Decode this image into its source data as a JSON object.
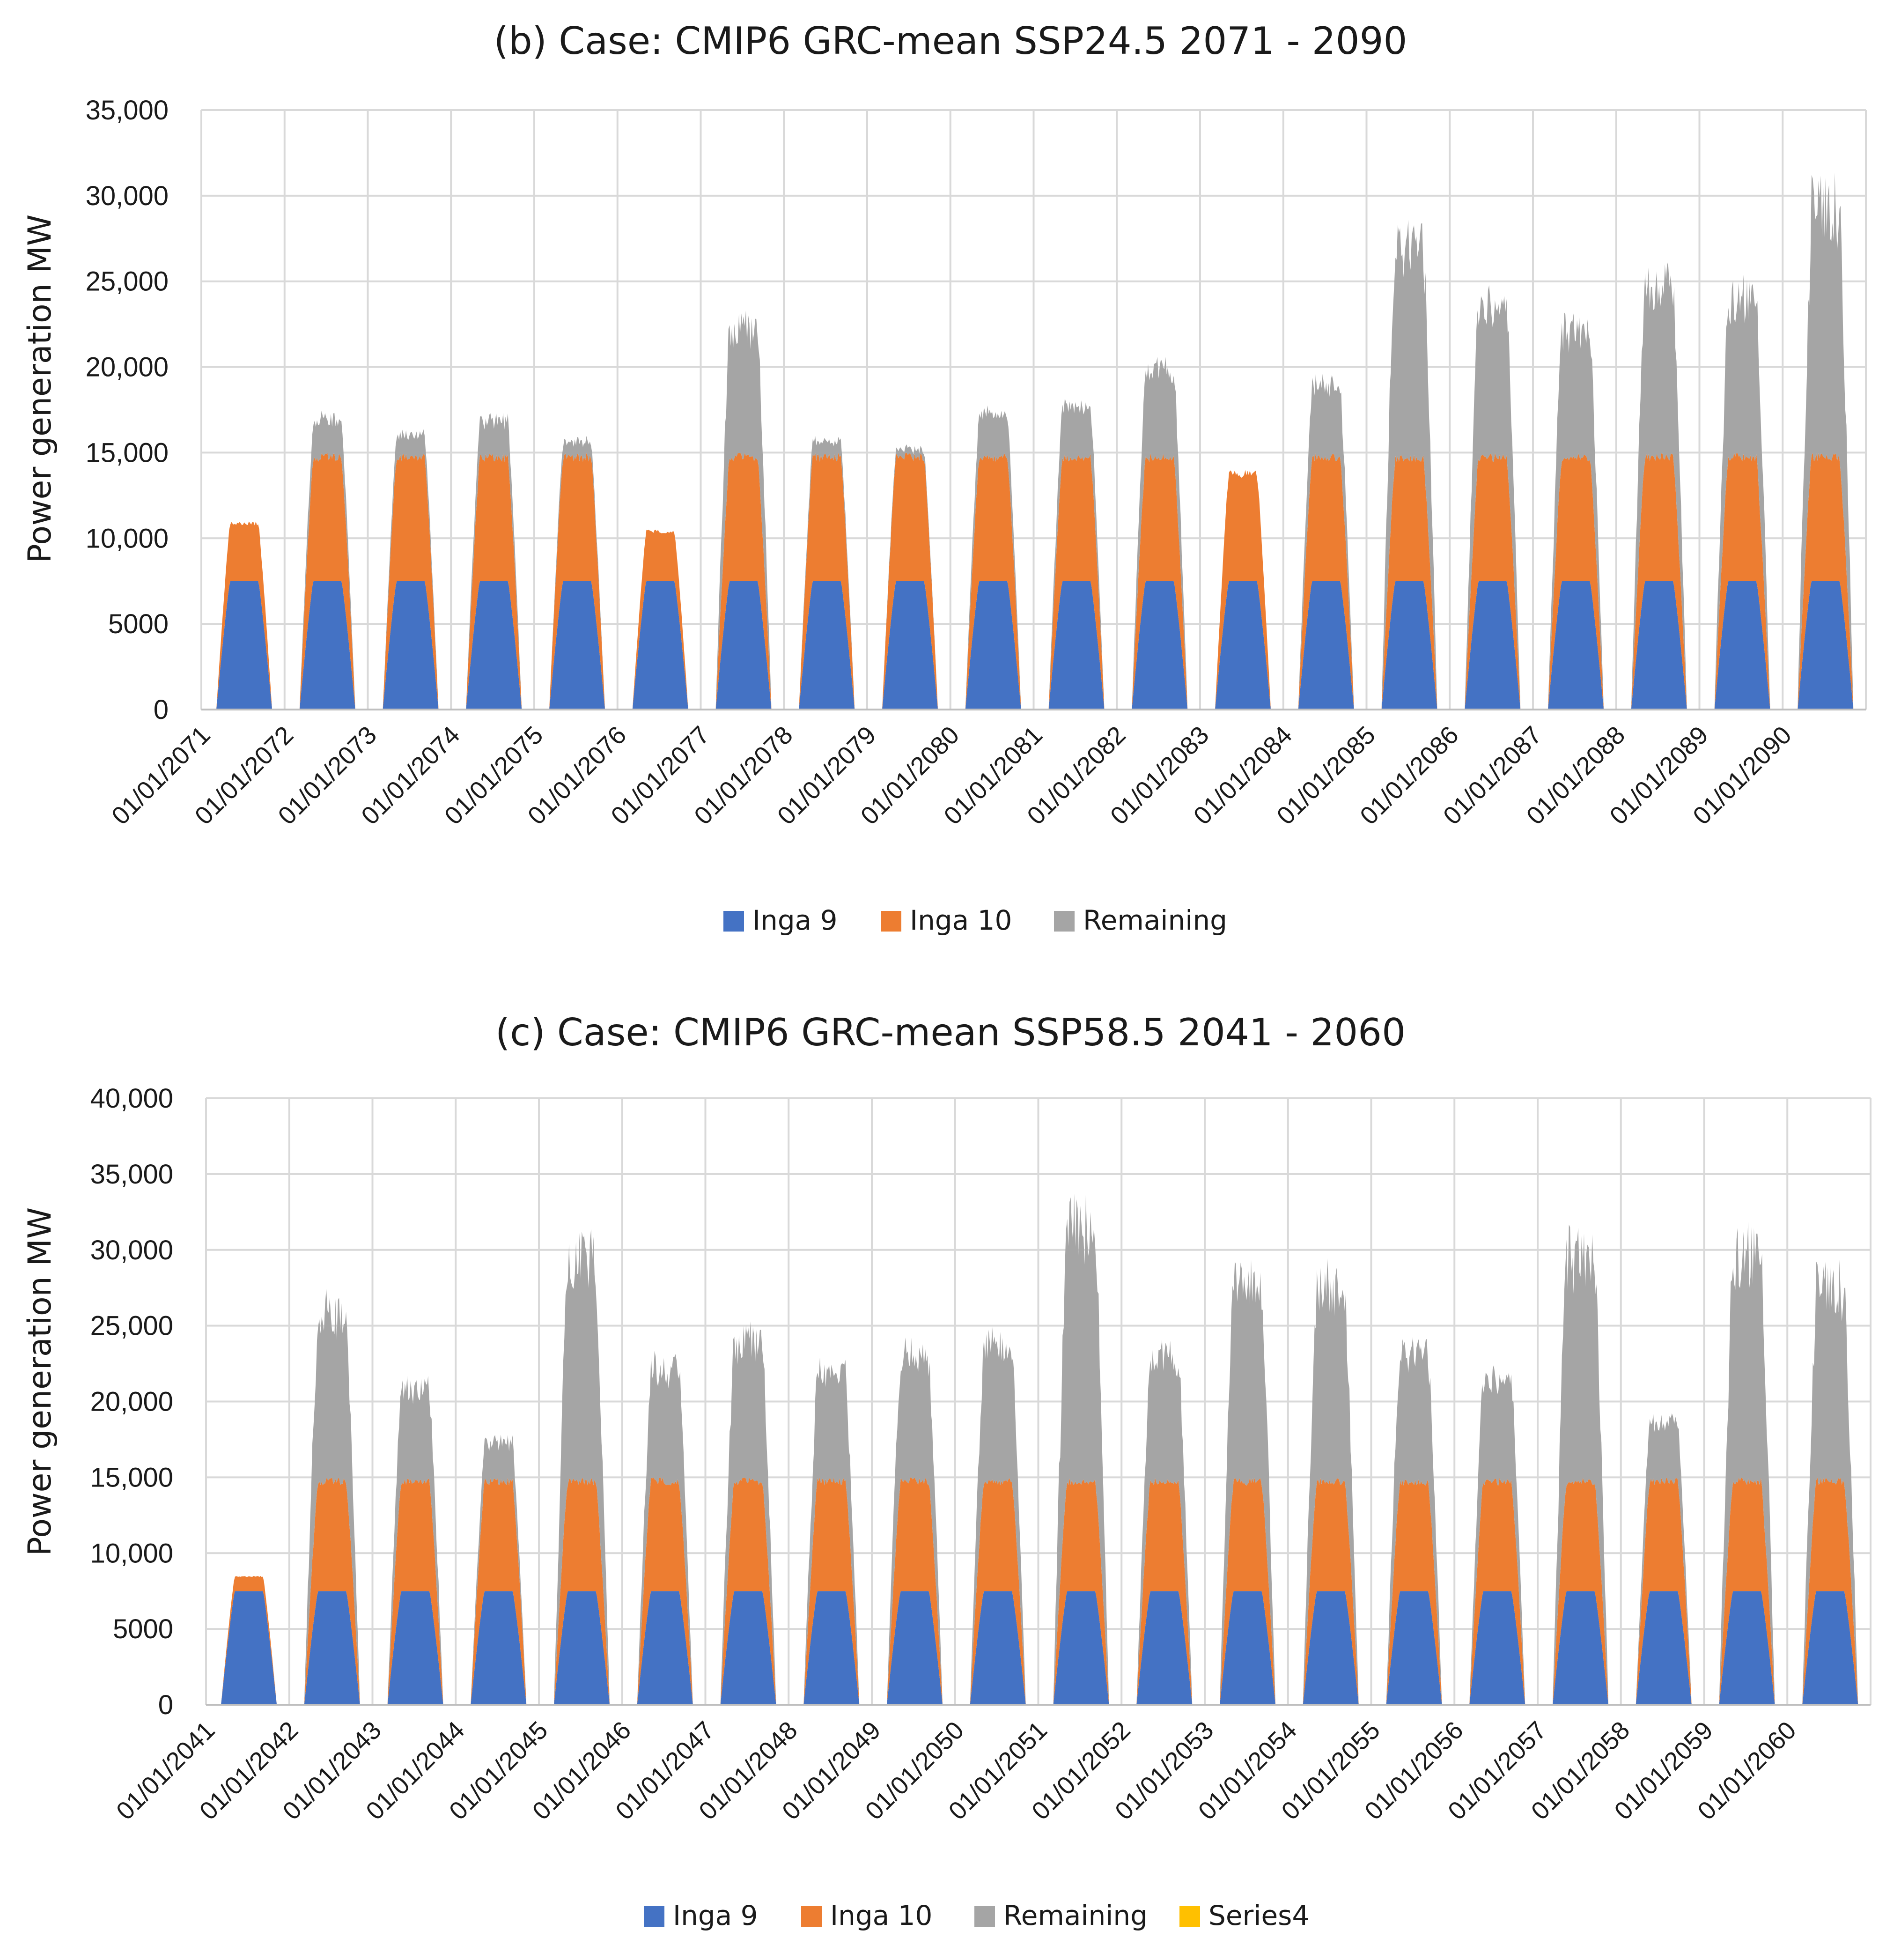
{
  "chart_data": [
    {
      "type": "area",
      "stacked": true,
      "title": "(b)  Case: CMIP6 GRC-mean  SSP24.5  2071 - 2090",
      "ylabel": "Power generation MW",
      "xlabel": "",
      "ylim": [
        0,
        35000
      ],
      "yticks": [
        0,
        5000,
        10000,
        15000,
        20000,
        25000,
        30000,
        35000
      ],
      "ytick_labels": [
        "0",
        "5000",
        "10,000",
        "15,000",
        "20,000",
        "25,000",
        "30,000",
        "35,000"
      ],
      "categories": [
        "01/01/2071",
        "01/01/2072",
        "01/01/2073",
        "01/01/2074",
        "01/01/2075",
        "01/01/2076",
        "01/01/2077",
        "01/01/2078",
        "01/01/2079",
        "01/01/2080",
        "01/01/2081",
        "01/01/2082",
        "01/01/2083",
        "01/01/2084",
        "01/01/2085",
        "01/01/2086",
        "01/01/2087",
        "01/01/2088",
        "01/01/2089",
        "01/01/2090"
      ],
      "grid": true,
      "legend_position": "bottom",
      "series": [
        {
          "name": "Inga 9",
          "color": "#4472c4",
          "values": [
            7500,
            7500,
            7500,
            7500,
            7500,
            7500,
            7500,
            7500,
            7500,
            7500,
            7500,
            7500,
            7500,
            7500,
            7500,
            7500,
            7500,
            7500,
            7500,
            7500
          ]
        },
        {
          "name": "Inga 10",
          "color": "#ed7d31",
          "values": [
            3500,
            7500,
            7500,
            7500,
            7500,
            3000,
            7500,
            7500,
            7500,
            7500,
            7500,
            7500,
            6500,
            7500,
            7500,
            7500,
            7500,
            7500,
            7500,
            7500
          ]
        },
        {
          "name": "Remaining",
          "color": "#a5a5a5",
          "values": [
            0,
            2500,
            1500,
            2500,
            1000,
            0,
            8500,
            1000,
            500,
            3000,
            3500,
            6000,
            0,
            5000,
            14500,
            10500,
            8500,
            11500,
            10500,
            16500
          ]
        }
      ]
    },
    {
      "type": "area",
      "stacked": true,
      "title": "(c)  Case: CMIP6 GRC-mean  SSP58.5  2041 - 2060",
      "ylabel": "Power generation MW",
      "xlabel": "",
      "ylim": [
        0,
        40000
      ],
      "yticks": [
        0,
        5000,
        10000,
        15000,
        20000,
        25000,
        30000,
        35000,
        40000
      ],
      "ytick_labels": [
        "0",
        "5000",
        "10,000",
        "15,000",
        "20,000",
        "25,000",
        "30,000",
        "35,000",
        "40,000"
      ],
      "categories": [
        "01/01/2041",
        "01/01/2042",
        "01/01/2043",
        "01/01/2044",
        "01/01/2045",
        "01/01/2046",
        "01/01/2047",
        "01/01/2048",
        "01/01/2049",
        "01/01/2050",
        "01/01/2051",
        "01/01/2052",
        "01/01/2053",
        "01/01/2054",
        "01/01/2055",
        "01/01/2056",
        "01/01/2057",
        "01/01/2058",
        "01/01/2059",
        "01/01/2060"
      ],
      "grid": true,
      "legend_position": "bottom",
      "series": [
        {
          "name": "Inga 9",
          "color": "#4472c4",
          "values": [
            7500,
            7500,
            7500,
            7500,
            7500,
            7500,
            7500,
            7500,
            7500,
            7500,
            7500,
            7500,
            7500,
            7500,
            7500,
            7500,
            7500,
            7500,
            7500,
            7500
          ]
        },
        {
          "name": "Inga 10",
          "color": "#ed7d31",
          "values": [
            1000,
            7500,
            7500,
            7500,
            7500,
            7500,
            7500,
            7500,
            7500,
            7500,
            7500,
            7500,
            7500,
            7500,
            7500,
            7500,
            7500,
            7500,
            7500,
            7500
          ]
        },
        {
          "name": "Remaining",
          "color": "#a5a5a5",
          "values": [
            0,
            12500,
            7000,
            3000,
            16500,
            8500,
            10500,
            8000,
            9500,
            10500,
            19500,
            9500,
            15000,
            15000,
            10000,
            8000,
            17000,
            4500,
            17000,
            14500
          ]
        },
        {
          "name": "Series4",
          "color": "#ffc000",
          "values": [
            0,
            0,
            0,
            0,
            0,
            0,
            0,
            0,
            0,
            0,
            0,
            0,
            0,
            0,
            0,
            0,
            0,
            0,
            0,
            0
          ]
        }
      ]
    }
  ]
}
